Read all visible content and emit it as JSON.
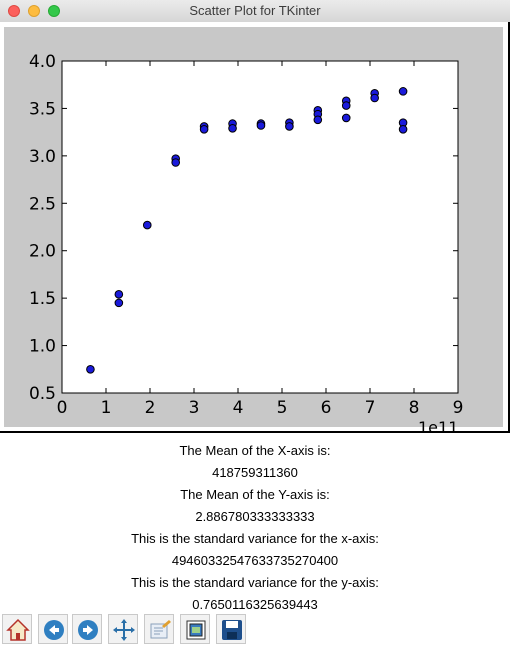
{
  "window": {
    "title": "Scatter Plot for TKinter"
  },
  "chart_data": {
    "type": "scatter",
    "x": [
      0.646,
      1.292,
      1.292,
      1.938,
      2.584,
      2.584,
      3.23,
      3.23,
      3.876,
      3.876,
      4.522,
      4.522,
      5.168,
      5.168,
      5.814,
      5.814,
      5.814,
      6.46,
      6.46,
      6.46,
      7.106,
      7.106,
      7.752,
      7.752,
      7.752
    ],
    "y": [
      0.75,
      1.54,
      1.45,
      2.27,
      2.97,
      2.93,
      3.31,
      3.28,
      3.34,
      3.29,
      3.34,
      3.32,
      3.35,
      3.31,
      3.48,
      3.44,
      3.38,
      3.58,
      3.53,
      3.4,
      3.66,
      3.61,
      3.68,
      3.35,
      3.28
    ],
    "xlim": [
      0,
      9
    ],
    "ylim": [
      0.5,
      4.0
    ],
    "xticks": [
      "0",
      "1",
      "2",
      "3",
      "4",
      "5",
      "6",
      "7",
      "8",
      "9"
    ],
    "yticks": [
      "0.5",
      "1.0",
      "1.5",
      "2.0",
      "2.5",
      "3.0",
      "3.5",
      "4.0"
    ],
    "x_offset_label": "1e11",
    "marker_color": "#1a1adb",
    "grid": false
  },
  "info": {
    "mean_x_label": "The Mean of the X-axis is:",
    "mean_x_value": "418759311360",
    "mean_y_label": "The Mean of the Y-axis is:",
    "mean_y_value": "2.886780333333333",
    "var_x_label": "This is the standard variance for the x-axis:",
    "var_x_value": "494603325476337352704​00",
    "var_y_label": "This is the standard variance for the y-axis:",
    "var_y_value": "0.7650116325639443"
  },
  "toolbar": {
    "buttons": [
      {
        "icon": "home-icon"
      },
      {
        "icon": "back-arrow-icon"
      },
      {
        "icon": "forward-arrow-icon"
      },
      {
        "icon": "pan-icon"
      },
      {
        "icon": "zoom-icon"
      },
      {
        "icon": "subplots-icon"
      },
      {
        "icon": "save-icon"
      }
    ]
  }
}
